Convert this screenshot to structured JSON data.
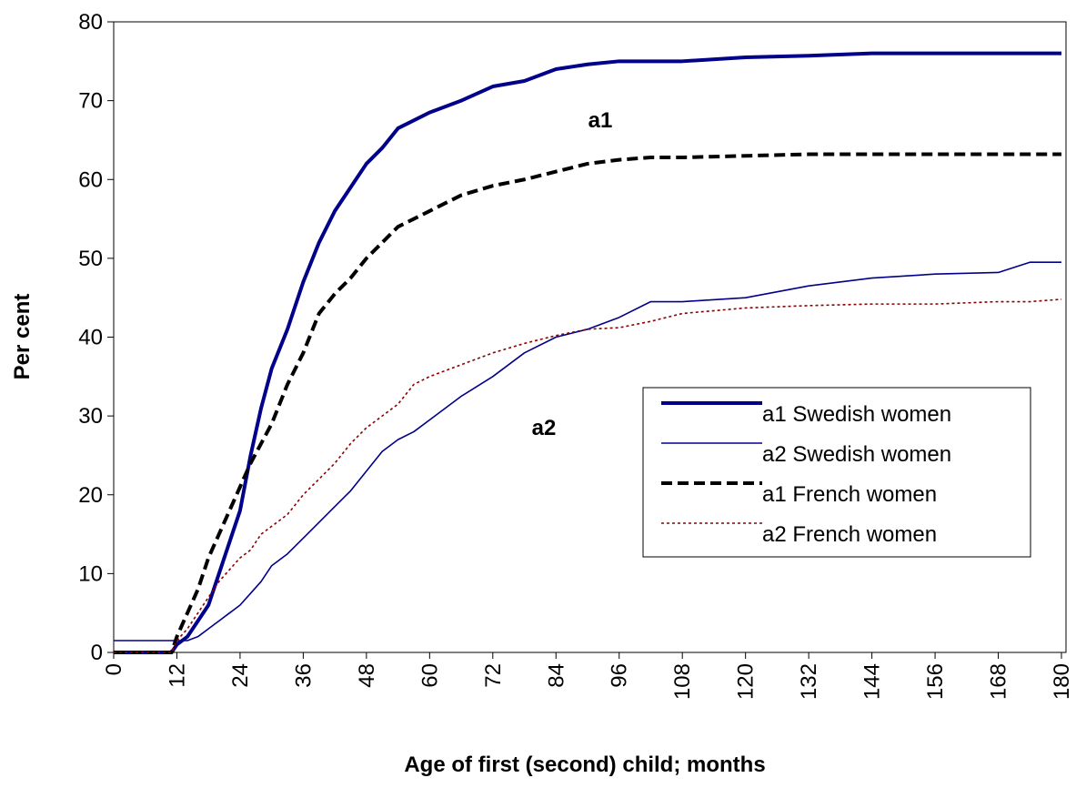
{
  "chart_data": {
    "type": "line",
    "y_label": "Per cent",
    "x_label": "Age of first (second) child; months",
    "x": [
      0,
      2,
      11,
      12,
      14,
      16,
      18,
      20,
      22,
      24,
      26,
      28,
      30,
      33,
      36,
      39,
      42,
      45,
      48,
      51,
      54,
      57,
      60,
      66,
      72,
      78,
      84,
      90,
      96,
      102,
      108,
      120,
      132,
      144,
      156,
      168,
      174,
      180
    ],
    "series": [
      {
        "name": "a1 Swedish women",
        "color": "#00008b",
        "style": "solid",
        "weight": "bold",
        "values": [
          0,
          0,
          0,
          1,
          2,
          4,
          6,
          10,
          14,
          18,
          25,
          31,
          36,
          41,
          47,
          52,
          56,
          59,
          62,
          64,
          66.5,
          67.5,
          68.5,
          70,
          71.8,
          72.5,
          74,
          74.6,
          75,
          75,
          75,
          75.5,
          75.7,
          76,
          76,
          76,
          76,
          76
        ]
      },
      {
        "name": "a2 Swedish women",
        "color": "#00008b",
        "style": "solid",
        "weight": "normal",
        "values": [
          1.5,
          1.5,
          1.5,
          1.5,
          1.5,
          2,
          3,
          4,
          5,
          6,
          7.5,
          9,
          11,
          12.5,
          14.5,
          16.5,
          18.5,
          20.5,
          23,
          25.5,
          27,
          28,
          29.5,
          32.5,
          35,
          38,
          40,
          41,
          42.5,
          44.5,
          44.5,
          45,
          46.5,
          47.5,
          48,
          48.2,
          49.5,
          49.5
        ]
      },
      {
        "name": "a1 French women",
        "color": "#000000",
        "style": "dashed",
        "weight": "bold",
        "values": [
          0,
          0,
          0,
          2,
          5,
          8,
          12,
          15,
          18,
          21,
          24,
          26.5,
          29,
          34,
          38,
          43,
          45.5,
          47.5,
          50,
          52,
          54,
          55,
          56,
          58,
          59.2,
          60,
          61,
          62,
          62.5,
          62.8,
          62.8,
          63,
          63.2,
          63.2,
          63.2,
          63.2,
          63.2,
          63.2
        ]
      },
      {
        "name": "a2 French women",
        "color": "#8b0000",
        "style": "dotted",
        "weight": "normal",
        "values": [
          0,
          0,
          0,
          1.5,
          3,
          5,
          7,
          9,
          10.5,
          12,
          13,
          15,
          16,
          17.5,
          20,
          22,
          24,
          26.5,
          28.5,
          30,
          31.5,
          34,
          35,
          36.5,
          38,
          39.2,
          40.2,
          41,
          41.2,
          42,
          43,
          43.7,
          44,
          44.2,
          44.2,
          44.5,
          44.5,
          44.8
        ]
      }
    ],
    "annotations": [
      "a1",
      "a2"
    ],
    "xlim": [
      0,
      180
    ],
    "xticks": [
      0,
      12,
      24,
      36,
      48,
      60,
      72,
      84,
      96,
      108,
      120,
      132,
      144,
      156,
      168,
      180
    ],
    "ylim": [
      0,
      80
    ],
    "yticks": [
      0,
      10,
      20,
      30,
      40,
      50,
      60,
      70,
      80
    ],
    "grid": false,
    "legend": "right"
  }
}
